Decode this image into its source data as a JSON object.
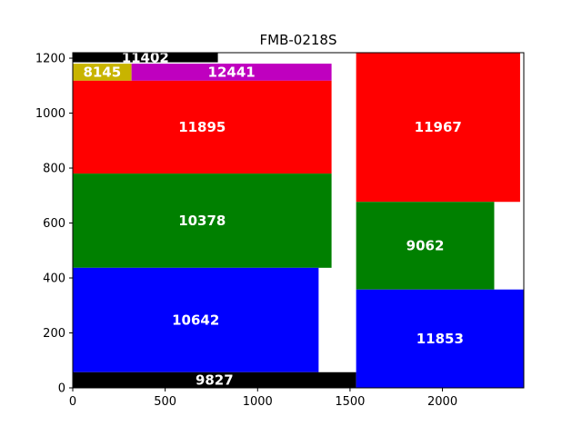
{
  "chart_data": {
    "type": "bar",
    "title": "FMB-0218S",
    "xlabel": "",
    "ylabel": "",
    "xlim": [
      0,
      2440
    ],
    "ylim": [
      0,
      1220
    ],
    "xticks": [
      0,
      500,
      1000,
      1500,
      2000
    ],
    "yticks": [
      0,
      200,
      400,
      600,
      800,
      1000,
      1200
    ],
    "grid": false,
    "legend": "none",
    "rects": [
      {
        "label": "11402",
        "x0": 0,
        "x1": 785,
        "y0": 1185,
        "y1": 1220,
        "color": "#000000"
      },
      {
        "label": "8145",
        "x0": 0,
        "x1": 318,
        "y0": 1118,
        "y1": 1180,
        "color": "#c8b400"
      },
      {
        "label": "12441",
        "x0": 318,
        "x1": 1400,
        "y0": 1118,
        "y1": 1180,
        "color": "#bf00bf"
      },
      {
        "label": "11895",
        "x0": 0,
        "x1": 1400,
        "y0": 780,
        "y1": 1118,
        "color": "#ff0000"
      },
      {
        "label": "10378",
        "x0": 0,
        "x1": 1400,
        "y0": 437,
        "y1": 780,
        "color": "#008000"
      },
      {
        "label": "10642",
        "x0": 0,
        "x1": 1330,
        "y0": 57,
        "y1": 437,
        "color": "#0000ff"
      },
      {
        "label": "9827",
        "x0": 0,
        "x1": 1533,
        "y0": 0,
        "y1": 57,
        "color": "#000000"
      },
      {
        "label": "11967",
        "x0": 1533,
        "x1": 2420,
        "y0": 677,
        "y1": 1220,
        "color": "#ff0000"
      },
      {
        "label": "9062",
        "x0": 1533,
        "x1": 2280,
        "y0": 358,
        "y1": 677,
        "color": "#008000"
      },
      {
        "label": "11853",
        "x0": 1533,
        "x1": 2440,
        "y0": 0,
        "y1": 358,
        "color": "#0000ff"
      }
    ]
  }
}
